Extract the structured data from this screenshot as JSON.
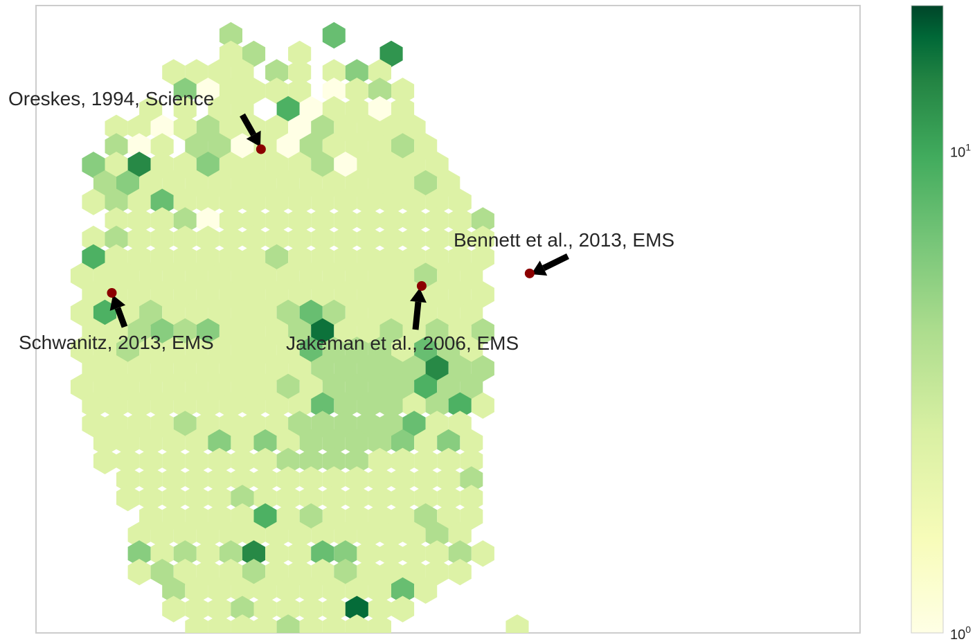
{
  "chart_data": {
    "type": "heatmap",
    "subtype": "hexbin",
    "title": "",
    "xlabel": "",
    "ylabel": "",
    "xlim": [
      0,
      1
    ],
    "ylim": [
      0,
      1
    ],
    "grid": false,
    "axis_ticks_shown": false,
    "colormap": "Greens",
    "color_scale": "log",
    "colors": {
      "low": "#ffffe5",
      "mid": "#78c679",
      "high": "#004529",
      "point": "#8b0000",
      "arrow": "#000000",
      "frame": "#cccccc"
    },
    "colorbar": {
      "min": 1,
      "max": 20,
      "ticks": [
        "10^0",
        "10^1"
      ],
      "tick_values": [
        1,
        10
      ]
    },
    "hex_grid": {
      "columns": 36,
      "rows": 35,
      "x_min": 0.028,
      "x_step": 0.0278,
      "y_max": 0.982,
      "y_step": 0.0295
    },
    "counts_by_row": [
      "......................................................",
      "..............3........5..........................",
      "...............2.3...2.......8...........",
      ".........2.2.2.2..3.2..2.4.2...........",
      "...........4.1.2.2.2.2..1.2.3.2...........",
      ".......2..2..2.2...6.1.2.2.1.2..........",
      ".....2.2.1.2.3.2.2.2.1.3.2.2.2.2..........",
      "....3.1.2..3.3.1.2.1.3.2.2.2.3.2..........",
      "...4.2.9.2.2.4.2.2.2.2.3.1.2.2.2.2.........",
      "...3.4.2.2.2.2.2.2.2.2.2.2.2.2.3.2..........",
      "...2.3.2.5.2.2.2.2.2.2.2.2.2.2.2.2.2.........",
      "....2.2.2.3.1.2.2.2.2.2.2.2.2.2.2.2.3........",
      "...2.3.2.2.2.2.2.2.2.2.2.2.2.2.2.2.2.2........",
      "..6.2.2.2.2.2.2.2.3.2.2.2.2.2.2.2.2.2........",
      "..2.2.2.2.2.2.2.2.2.2.2.2.2.2.2.3.2.2........",
      "..2.2.2.2.2.2.2.2.2.2.2.2.2.2.2.2.2.2........",
      "..2.6.2.3.2.2.2.2.2.3.5.3.2.2.2.2.2.2........",
      "..2.2.3.4.3.4.2.2.2.3.12.2.2.3.2.3.2.3........",
      "..2.2.3.2.2.2.2.2.2.2.5.3.3.3.2.5.3.2........",
      "..2.2.2.2.2.2.2.2.2.2.3.3.3.3.3.9.3.3........",
      "..2.2.2.2.2.2.2.2.2.3.2.3.3.3.3.6.3.3........",
      "..2.2.2.2.2.2.2.2.2.2.5.3.3.3.2.3.6.2........",
      "...2.2.2.2.3.2.2.2.2.3.3.3.3.3.5.2.2........",
      "...2.2.2.2.2.4.2.4.2.3.3.3.3.4.2.4.2........",
      "....2.2.2.2.2.2.2.2.3.3.3.3.2.2.2.2.2........",
      ".....2.2.2.2.2.2.2.2.2.2.2.2.2.2.2.3........",
      "......2.2.2.2.2.3.2.2.2.2.2.2.2.2.2.2........",
      ".......2.2.2.2.2.6.2.3.2.2.2.2.3.2.2........",
      ".......2.2.2.2.2.2.2.2.2.2.2.2.2.3.2........",
      "......4.2.3.2.3.9.2.2.5.4.2.2.2.2.3.2........",
      ".......2.3.2.2.2.3.2.2.2.3.2.2.2.2.2........",
      ".........3.2.2.2.2.2.2.2.2.2.5.2........",
      "..........2.2.2.3.2.2.2.2.13.2.2.......",
      "...........2.2.2.2.3.2.2.2.2...........2",
      "............2.2.3.2.2.2.2............."
    ],
    "highlighted_points": [
      {
        "label": "Oreskes, 1994, Science",
        "x": 0.273,
        "y": 0.771
      },
      {
        "label": "Schwanitz, 2013, EMS",
        "x": 0.092,
        "y": 0.542
      },
      {
        "label": "Jakeman et al., 2006, EMS",
        "x": 0.468,
        "y": 0.553
      },
      {
        "label": "Bennett et al., 2013, EMS",
        "x": 0.599,
        "y": 0.573
      }
    ]
  }
}
